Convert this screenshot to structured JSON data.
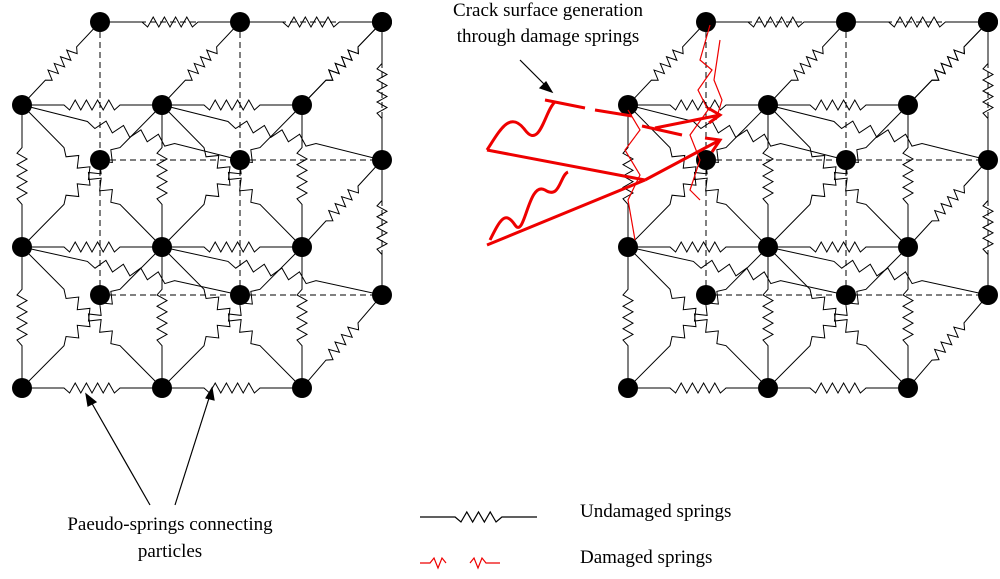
{
  "crack_label": {
    "lines": [
      "Crack surface generation",
      "through damage springs"
    ]
  },
  "springs_label": {
    "lines": [
      "Paeudo-springs connecting",
      "particles"
    ]
  },
  "legend": {
    "items": [
      {
        "label": "Undamaged springs"
      },
      {
        "label": "Damaged springs"
      }
    ]
  }
}
